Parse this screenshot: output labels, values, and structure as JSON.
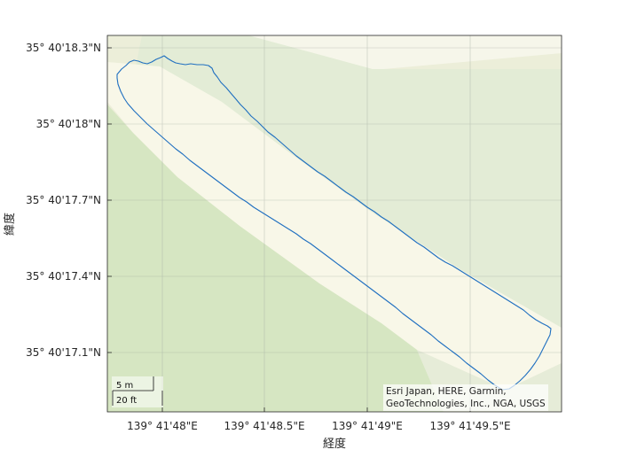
{
  "map": {
    "xlabel": "経度",
    "ylabel": "緯度",
    "x_ticks": [
      "139° 41'48\"E",
      "139° 41'48.5\"E",
      "139° 41'49\"E",
      "139° 41'49.5\"E"
    ],
    "y_ticks": [
      "35° 40'18.3\"N",
      "35° 40'18\"N",
      "35° 40'17.7\"N",
      "35° 40'17.4\"N",
      "35° 40'17.1\"N"
    ],
    "scalebar": {
      "metric_label": "5 m",
      "imperial_label": "20 ft"
    },
    "attribution_lines": [
      "Esri Japan, HERE, Garmin,",
      "GeoTechnologies, Inc., NGA, USGS"
    ],
    "grid": true,
    "colors": {
      "boundary": "#1f6fc0",
      "park_green": "#d6e6c2",
      "light_green": "#e3ecd6",
      "path_cream": "#f8f7e8",
      "background": "#eef1e3",
      "grid": "#9aa39a"
    }
  }
}
